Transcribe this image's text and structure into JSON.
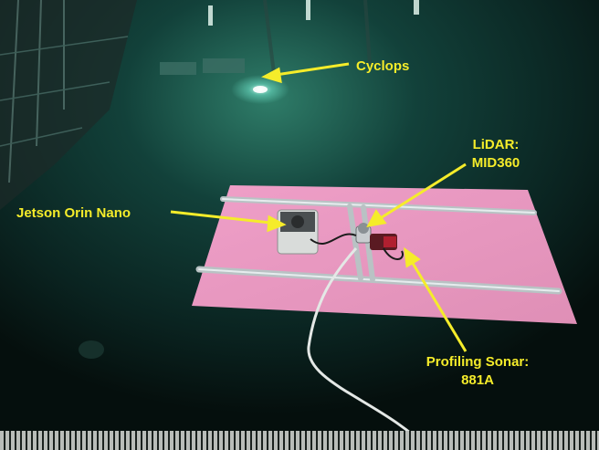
{
  "photo": {
    "annotations": {
      "cyclops": "Cyclops",
      "jetson": "Jetson Orin Nano",
      "lidar_line1": "LiDAR:",
      "lidar_line2": "MID360",
      "sonar_line1": "Profiling Sonar:",
      "sonar_line2": "881A"
    },
    "colors": {
      "label": "#f5ec2a",
      "water_deep": "#06140f",
      "water_mid": "#0f3a30",
      "water_glow": "#6fe3c9",
      "float_board": "#e79ac0",
      "rail": "#b9c2c4",
      "grate": "#b9bdb9"
    }
  }
}
